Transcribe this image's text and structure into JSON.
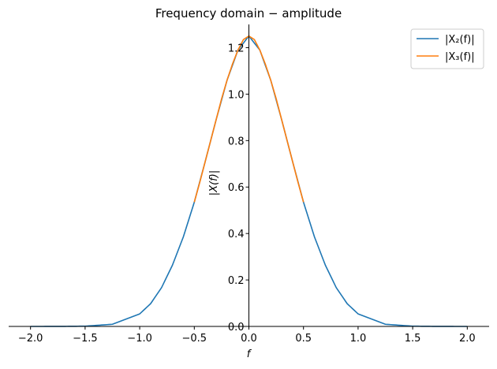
{
  "chart_data": {
    "type": "line",
    "title": "Frequency domain − amplitude",
    "xlabel": "f",
    "ylabel": "|X(f)|",
    "xlim": [
      -2.2,
      2.2
    ],
    "ylim": [
      0.0,
      1.3
    ],
    "xticks": [
      -2.0,
      -1.5,
      -1.0,
      -0.5,
      0.0,
      0.5,
      1.0,
      1.5,
      2.0
    ],
    "xtick_labels": [
      "−2.0",
      "−1.5",
      "−1.0",
      "−0.5",
      "0.0",
      "0.5",
      "1.0",
      "1.5",
      "2.0"
    ],
    "yticks": [
      0.0,
      0.2,
      0.4,
      0.6,
      0.8,
      1.0,
      1.2
    ],
    "ytick_labels": [
      "0.0",
      "0.2",
      "0.4",
      "0.6",
      "0.8",
      "1.0",
      "1.2"
    ],
    "grid": false,
    "legend_position": "top-right",
    "series": [
      {
        "name": "|X₂(f)|",
        "color": "#1f77b4",
        "x": [
          -2.0,
          -1.75,
          -1.5,
          -1.25,
          -1.0,
          -0.9,
          -0.8,
          -0.7,
          -0.6,
          -0.5,
          -0.4,
          -0.3,
          -0.2,
          -0.1,
          0.0,
          0.1,
          0.2,
          0.3,
          0.4,
          0.5,
          0.6,
          0.7,
          0.8,
          0.9,
          1.0,
          1.25,
          1.5,
          1.75,
          2.0
        ],
        "y": [
          0.0,
          0.0001,
          0.0011,
          0.0093,
          0.054,
          0.098,
          0.167,
          0.264,
          0.386,
          0.535,
          0.71,
          0.89,
          1.06,
          1.19,
          1.25,
          1.19,
          1.06,
          0.89,
          0.71,
          0.535,
          0.386,
          0.264,
          0.167,
          0.098,
          0.054,
          0.0093,
          0.0011,
          0.0001,
          0.0
        ]
      },
      {
        "name": "|X₃(f)|",
        "color": "#ff7f0e",
        "x": [
          -0.5,
          -0.45,
          -0.4,
          -0.35,
          -0.3,
          -0.25,
          -0.2,
          -0.15,
          -0.1,
          -0.05,
          0.0,
          0.05,
          0.1,
          0.15,
          0.2,
          0.25,
          0.3,
          0.35,
          0.4,
          0.45,
          0.5
        ],
        "y": [
          0.535,
          0.62,
          0.71,
          0.8,
          0.89,
          0.98,
          1.06,
          1.13,
          1.19,
          1.235,
          1.25,
          1.235,
          1.19,
          1.13,
          1.06,
          0.98,
          0.89,
          0.8,
          0.71,
          0.62,
          0.535
        ]
      }
    ]
  }
}
